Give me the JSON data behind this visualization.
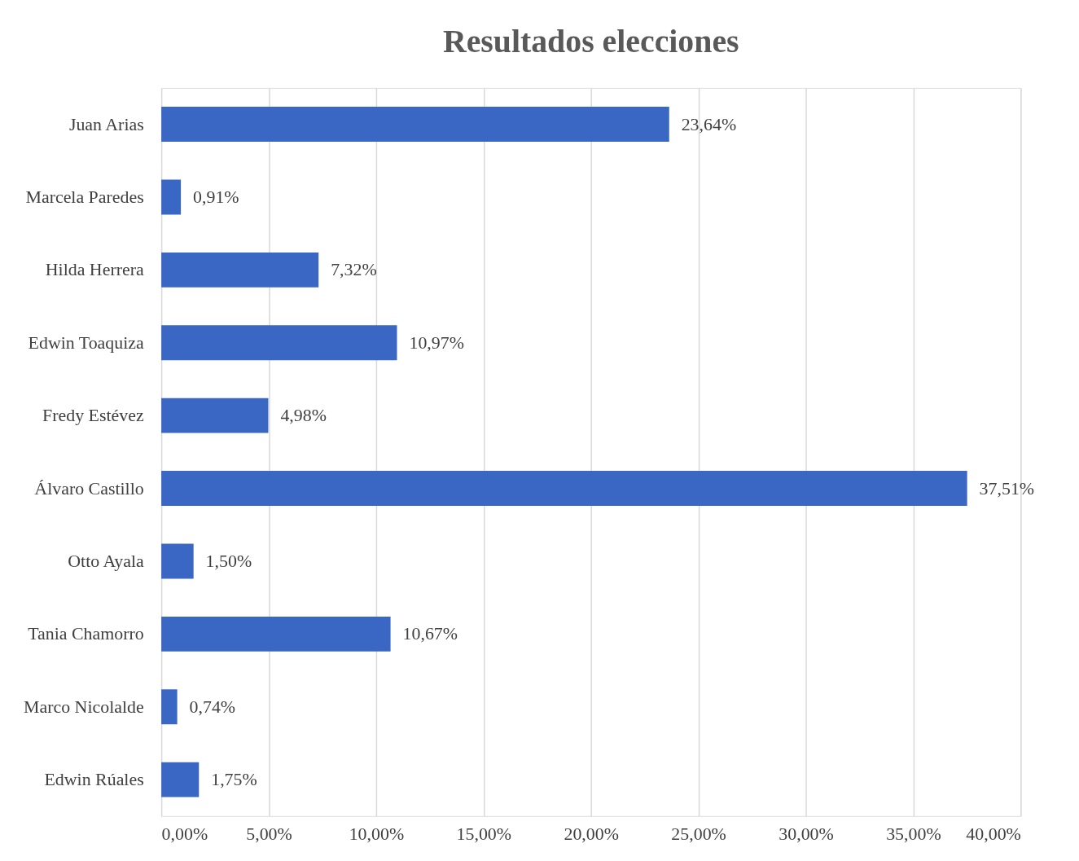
{
  "chart_data": {
    "type": "bar",
    "orientation": "horizontal",
    "title": "Resultados elecciones",
    "categories": [
      "Juan Arias",
      "Marcela Paredes",
      "Hilda Herrera",
      "Edwin Toaquiza",
      "Fredy Estévez",
      "Álvaro Castillo",
      "Otto Ayala",
      "Tania Chamorro",
      "Marco Nicolalde",
      "Edwin Rúales"
    ],
    "values": [
      23.64,
      0.91,
      7.32,
      10.97,
      4.98,
      37.51,
      1.5,
      10.67,
      0.74,
      1.75
    ],
    "value_labels": [
      "23,64%",
      "0,91%",
      "7,32%",
      "10,97%",
      "4,98%",
      "37,51%",
      "1,50%",
      "10,67%",
      "0,74%",
      "1,75%"
    ],
    "color": "#3a67c4",
    "xlim": [
      0,
      40
    ],
    "xticks": [
      {
        "value": 0,
        "label": "0,00%"
      },
      {
        "value": 5,
        "label": "5,00%"
      },
      {
        "value": 10,
        "label": "10,00%"
      },
      {
        "value": 15,
        "label": "15,00%"
      },
      {
        "value": 20,
        "label": "20,00%"
      },
      {
        "value": 25,
        "label": "25,00%"
      },
      {
        "value": 30,
        "label": "30,00%"
      },
      {
        "value": 35,
        "label": "35,00%"
      },
      {
        "value": 40,
        "label": "40,00%"
      }
    ],
    "grid": "x"
  }
}
